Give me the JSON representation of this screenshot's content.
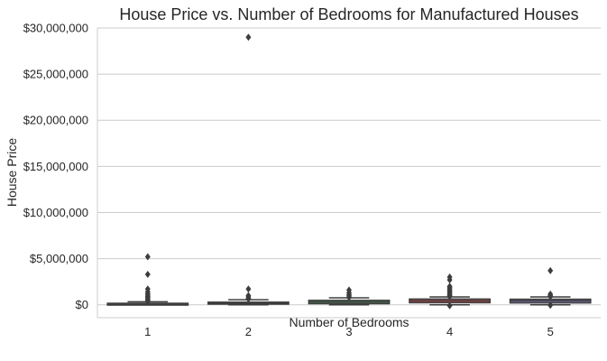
{
  "chart_data": {
    "type": "box",
    "title": "House Price vs. Number of Bedrooms for Manufactured Houses",
    "xlabel": "Number of Bedrooms",
    "ylabel": "House Price",
    "categories": [
      "1",
      "2",
      "3",
      "4",
      "5"
    ],
    "ylim": [
      -1400000,
      30000000
    ],
    "yticks": [
      0,
      5000000,
      10000000,
      15000000,
      20000000,
      25000000,
      30000000
    ],
    "ytick_labels": [
      "$0",
      "$5,000,000",
      "$10,000,000",
      "$15,000,000",
      "$20,000,000",
      "$25,000,000",
      "$30,000,000"
    ],
    "grid": "horizontal",
    "boxes": [
      {
        "category": "1",
        "color": "#4c72b0",
        "whisker_low": 0,
        "q1": 40000,
        "median": 90000,
        "q3": 160000,
        "whisker_high": 330000,
        "outliers": [
          400000,
          520000,
          650000,
          780000,
          900000,
          1050000,
          1200000,
          1400000,
          1700000,
          3300000,
          5200000
        ]
      },
      {
        "category": "2",
        "color": "#dd8452",
        "whisker_low": 0,
        "q1": 70000,
        "median": 150000,
        "q3": 280000,
        "whisker_high": 550000,
        "outliers": [
          620000,
          700000,
          850000,
          1000000,
          1700000,
          29000000
        ]
      },
      {
        "category": "3",
        "color": "#55a868",
        "whisker_low": 0,
        "q1": 120000,
        "median": 300000,
        "q3": 480000,
        "whisker_high": 750000,
        "outliers": [
          800000,
          950000,
          1100000,
          1300000,
          1600000
        ]
      },
      {
        "category": "4",
        "color": "#c44e52",
        "whisker_low": 0,
        "q1": 220000,
        "median": 420000,
        "q3": 620000,
        "whisker_high": 850000,
        "outliers": [
          -100000,
          900000,
          1000000,
          1100000,
          1250000,
          1400000,
          1550000,
          1700000,
          1850000,
          2000000,
          2700000,
          3000000
        ]
      },
      {
        "category": "5",
        "color": "#8172b3",
        "whisker_low": 0,
        "q1": 200000,
        "median": 420000,
        "q3": 600000,
        "whisker_high": 850000,
        "outliers": [
          -50000,
          900000,
          1000000,
          1150000,
          3700000
        ]
      }
    ]
  }
}
